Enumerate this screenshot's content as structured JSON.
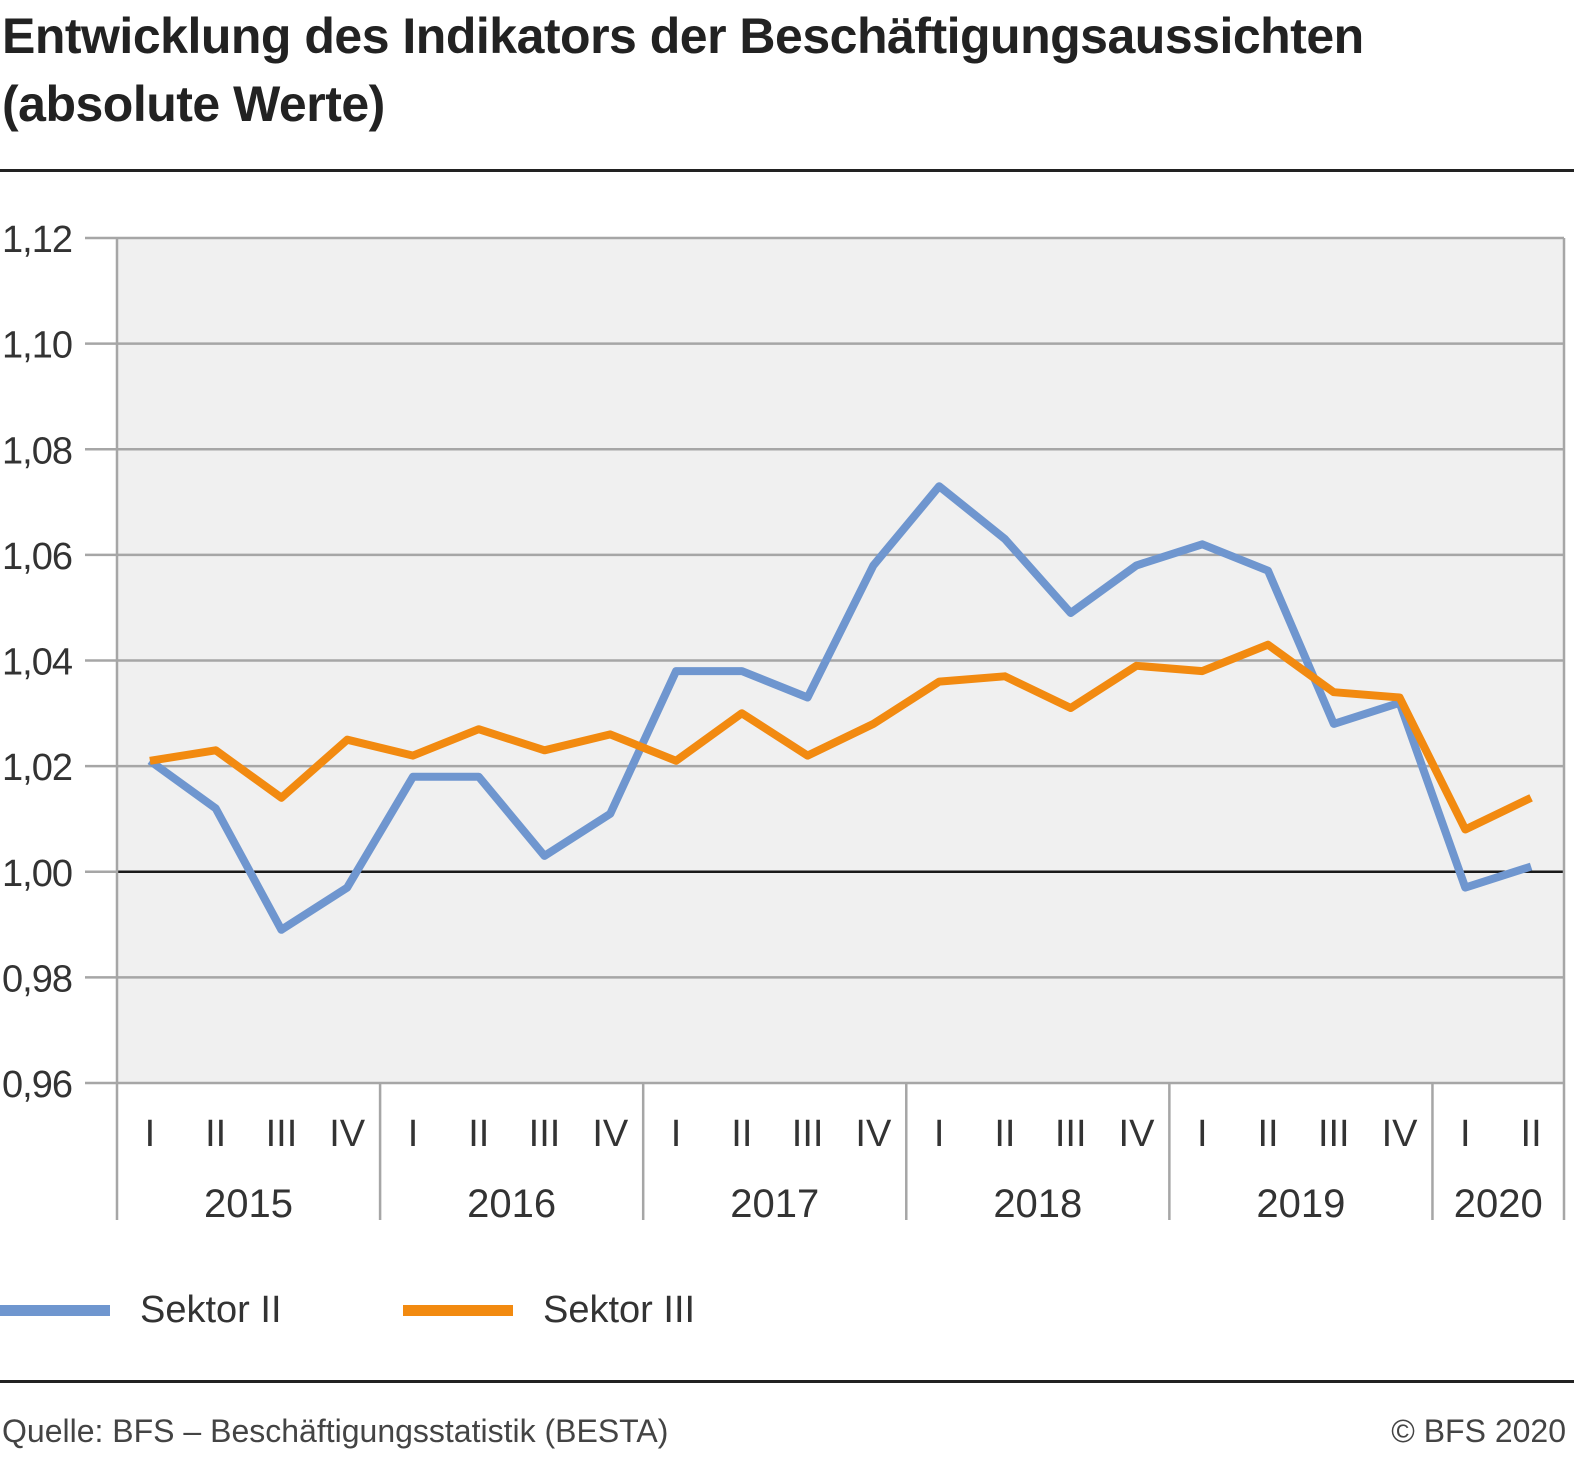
{
  "title": {
    "line1": "Entwicklung des Indikators der Beschäftigungsaussichten",
    "line2": "(absolute Werte)"
  },
  "colors": {
    "plot_background": "#f0f0f0",
    "grid": "#a6a6a6",
    "baseline": "#1a1a1a",
    "sektor_ii": "#6f96cf",
    "sektor_iii": "#f28a10"
  },
  "chart_data": {
    "type": "line",
    "ylim": [
      0.96,
      1.12
    ],
    "yticks": [
      "0,96",
      "0,98",
      "1,00",
      "1,02",
      "1,04",
      "1,06",
      "1,08",
      "1,10",
      "1,12"
    ],
    "ytick_values": [
      0.96,
      0.98,
      1.0,
      1.02,
      1.04,
      1.06,
      1.08,
      1.1,
      1.12
    ],
    "baseline_value": 1.0,
    "grid": true,
    "legend_position": "bottom",
    "categories": [
      "I",
      "II",
      "III",
      "IV",
      "I",
      "II",
      "III",
      "IV",
      "I",
      "II",
      "III",
      "IV",
      "I",
      "II",
      "III",
      "IV",
      "I",
      "II",
      "III",
      "IV",
      "I",
      "II"
    ],
    "year_groups": [
      {
        "label": "2015",
        "count": 4
      },
      {
        "label": "2016",
        "count": 4
      },
      {
        "label": "2017",
        "count": 4
      },
      {
        "label": "2018",
        "count": 4
      },
      {
        "label": "2019",
        "count": 4
      },
      {
        "label": "2020",
        "count": 2
      }
    ],
    "series": [
      {
        "name": "Sektor II",
        "color": "#6f96cf",
        "values": [
          1.021,
          1.012,
          0.989,
          0.997,
          1.018,
          1.018,
          1.003,
          1.011,
          1.038,
          1.038,
          1.033,
          1.058,
          1.073,
          1.063,
          1.049,
          1.058,
          1.062,
          1.057,
          1.028,
          1.032,
          0.997,
          1.001
        ]
      },
      {
        "name": "Sektor III",
        "color": "#f28a10",
        "values": [
          1.021,
          1.023,
          1.014,
          1.025,
          1.022,
          1.027,
          1.023,
          1.026,
          1.021,
          1.03,
          1.022,
          1.028,
          1.036,
          1.037,
          1.031,
          1.039,
          1.038,
          1.043,
          1.034,
          1.033,
          1.008,
          1.014
        ]
      }
    ]
  },
  "legend": {
    "items": [
      {
        "label": "Sektor II"
      },
      {
        "label": "Sektor III"
      }
    ]
  },
  "footer": {
    "source": "Quelle: BFS – Beschäftigungsstatistik (BESTA)",
    "copyright": "© BFS 2020"
  }
}
